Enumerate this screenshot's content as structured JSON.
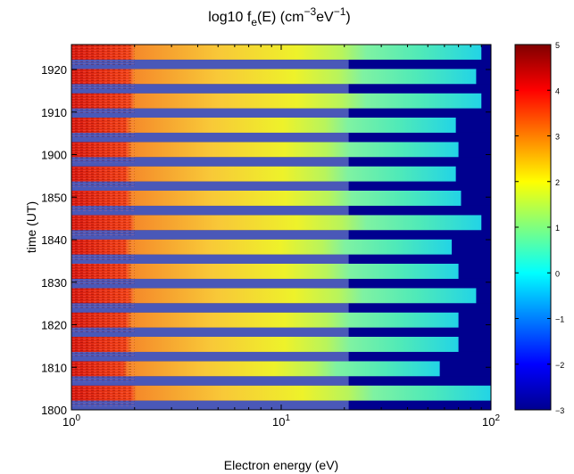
{
  "chart_data": {
    "type": "heatmap",
    "title_base": "log10 f",
    "title_sub": "e",
    "title_rest": "(E) (cm",
    "title_sup1": "−3",
    "title_mid": "eV",
    "title_sup2": "−1",
    "title_end": ")",
    "xlabel": "Electron energy (eV)",
    "ylabel": "time (UT)",
    "x_scale": "log",
    "xlim": [
      1,
      100
    ],
    "x_ticks": [
      {
        "value": 1,
        "base": "10",
        "exp": "0"
      },
      {
        "value": 10,
        "base": "10",
        "exp": "1"
      },
      {
        "value": 100,
        "base": "10",
        "exp": "2"
      }
    ],
    "y_tick_labels": [
      "1800",
      "1810",
      "1820",
      "1830",
      "1840",
      "1850",
      "1900",
      "1910",
      "1920"
    ],
    "colorbar": {
      "colormap": "jet",
      "range": [
        -3,
        5
      ],
      "ticks": [
        "5",
        "4",
        "3",
        "2",
        "1",
        "0",
        "−1",
        "−2",
        "−3"
      ]
    },
    "background_value": -3,
    "gap_color": "#4a58b8",
    "spectra": [
      {
        "cutoff_eV": 100,
        "log_f_at_cutoff": 0.3
      },
      {
        "cutoff_eV": 57,
        "log_f_at_cutoff": 0.9
      },
      {
        "cutoff_eV": 70,
        "log_f_at_cutoff": 0.7
      },
      {
        "cutoff_eV": 70,
        "log_f_at_cutoff": 0.7
      },
      {
        "cutoff_eV": 85,
        "log_f_at_cutoff": 0.4
      },
      {
        "cutoff_eV": 70,
        "log_f_at_cutoff": 0.5
      },
      {
        "cutoff_eV": 65,
        "log_f_at_cutoff": 0.5
      },
      {
        "cutoff_eV": 90,
        "log_f_at_cutoff": 0.4
      },
      {
        "cutoff_eV": 72,
        "log_f_at_cutoff": 0.6
      },
      {
        "cutoff_eV": 68,
        "log_f_at_cutoff": 0.6
      },
      {
        "cutoff_eV": 70,
        "log_f_at_cutoff": 0.6
      },
      {
        "cutoff_eV": 68,
        "log_f_at_cutoff": 0.6
      },
      {
        "cutoff_eV": 90,
        "log_f_at_cutoff": 0.3
      },
      {
        "cutoff_eV": 85,
        "log_f_at_cutoff": 0.3
      },
      {
        "cutoff_eV": 90,
        "log_f_at_cutoff": 0.3
      }
    ]
  }
}
